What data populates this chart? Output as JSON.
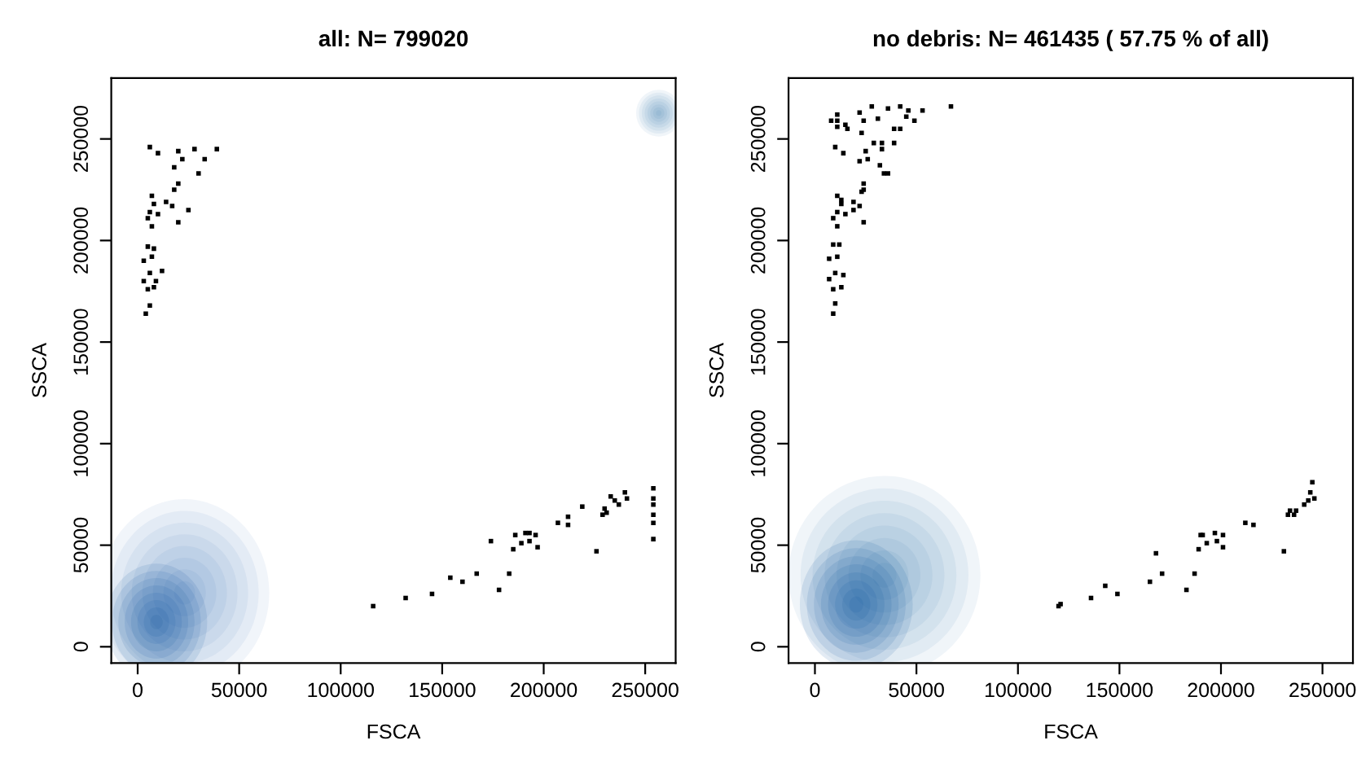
{
  "chart_data": [
    {
      "type": "scatter",
      "title": "all: N= 799020",
      "xlabel": "FSCA",
      "ylabel": "SSCA",
      "xlim": [
        -13000,
        265000
      ],
      "ylim": [
        -8000,
        280000
      ],
      "xticks": [
        0,
        50000,
        100000,
        150000,
        200000,
        250000
      ],
      "yticks": [
        0,
        50000,
        100000,
        150000,
        200000,
        250000
      ],
      "grid": false,
      "legend": false,
      "marker": "square",
      "series": [
        {
          "color": "#000000",
          "x": [
            6000,
            10000,
            20000,
            18000,
            22000,
            28000,
            33000,
            30000,
            39000,
            20000,
            18000,
            7000,
            8000,
            14000,
            17000,
            25000,
            6000,
            10000,
            5000,
            20000,
            7000,
            5000,
            8000,
            3000,
            7000,
            12000,
            6000,
            3000,
            9000,
            8000,
            5000,
            6000,
            4000,
            116000,
            132000,
            145000,
            154000,
            160000,
            167000,
            178000,
            183000,
            174000,
            186000,
            191000,
            193000,
            196000,
            189000,
            193000,
            197000,
            185000,
            207000,
            212000,
            212000,
            219000,
            226000,
            230000,
            231000,
            229000,
            233000,
            235000,
            237000,
            240000,
            241000,
            254000,
            254000,
            254000,
            254000,
            254000,
            254000
          ],
          "values": [
            246000,
            243000,
            244000,
            236000,
            240000,
            245000,
            240000,
            233000,
            245000,
            228000,
            225000,
            222000,
            218000,
            219000,
            217000,
            215000,
            214000,
            213000,
            211000,
            209000,
            207000,
            197000,
            196000,
            190000,
            192000,
            185000,
            184000,
            180000,
            180000,
            177000,
            176000,
            168000,
            164000,
            20000,
            24000,
            26000,
            34000,
            32000,
            36000,
            28000,
            36000,
            52000,
            55000,
            56000,
            56000,
            55000,
            51000,
            52000,
            49000,
            48000,
            61000,
            64000,
            60000,
            69000,
            47000,
            68000,
            66000,
            65000,
            74000,
            72000,
            70000,
            76000,
            73000,
            78000,
            73000,
            70000,
            65000,
            61000,
            53000
          ]
        }
      ]
    },
    {
      "type": "scatter",
      "title": "no debris: N= 461435 ( 57.75 % of all)",
      "xlabel": "FSCA",
      "ylabel": "SSCA",
      "xlim": [
        -13000,
        265000
      ],
      "ylim": [
        -8000,
        280000
      ],
      "xticks": [
        0,
        50000,
        100000,
        150000,
        200000,
        250000
      ],
      "yticks": [
        0,
        50000,
        100000,
        150000,
        200000,
        250000
      ],
      "grid": false,
      "legend": false,
      "marker": "square",
      "series": [
        {
          "color": "#000000",
          "x": [
            11000,
            8000,
            11000,
            11000,
            15000,
            16000,
            22000,
            28000,
            24000,
            31000,
            36000,
            42000,
            46000,
            45000,
            49000,
            53000,
            67000,
            42000,
            39000,
            23000,
            10000,
            14000,
            22000,
            26000,
            25000,
            29000,
            33000,
            33000,
            32000,
            34000,
            36000,
            39000,
            24000,
            24000,
            23000,
            11000,
            13000,
            13000,
            19000,
            19000,
            22000,
            11000,
            15000,
            9000,
            11000,
            24000,
            9000,
            12000,
            11000,
            7000,
            10000,
            14000,
            7000,
            13000,
            9000,
            10000,
            9000,
            120000,
            121000,
            136000,
            143000,
            149000,
            165000,
            171000,
            168000,
            183000,
            187000,
            190000,
            191000,
            189000,
            193000,
            197000,
            198000,
            201000,
            201000,
            212000,
            216000,
            231000,
            233000,
            236000,
            234000,
            237000,
            241000,
            243000,
            246000,
            244000,
            245000
          ],
          "values": [
            262000,
            259000,
            259000,
            256000,
            257000,
            255000,
            263000,
            266000,
            259000,
            260000,
            265000,
            266000,
            264000,
            261000,
            259000,
            264000,
            266000,
            255000,
            255000,
            253000,
            246000,
            243000,
            239000,
            240000,
            244000,
            248000,
            248000,
            245000,
            237000,
            233000,
            233000,
            248000,
            228000,
            225000,
            224000,
            222000,
            220000,
            218000,
            219000,
            215000,
            217000,
            214000,
            213000,
            211000,
            207000,
            209000,
            198000,
            198000,
            192000,
            191000,
            184000,
            183000,
            181000,
            177000,
            176000,
            169000,
            164000,
            20000,
            21000,
            24000,
            30000,
            26000,
            32000,
            36000,
            46000,
            28000,
            36000,
            55000,
            55000,
            48000,
            51000,
            56000,
            52000,
            55000,
            49000,
            61000,
            60000,
            47000,
            65000,
            65000,
            67000,
            67000,
            70000,
            72000,
            73000,
            76000,
            81000
          ]
        }
      ]
    }
  ]
}
